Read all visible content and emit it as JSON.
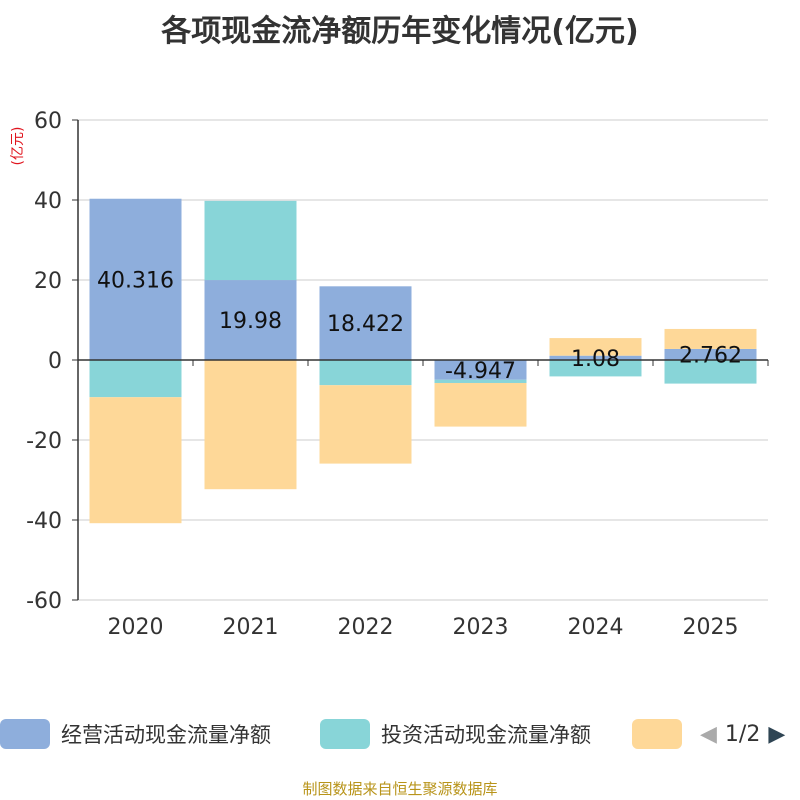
{
  "chart_data": {
    "type": "bar",
    "stacked": true,
    "title": "各项现金流净额历年变化情况(亿元)",
    "ylabel": "(亿元)",
    "xlabel": "",
    "ylim": [
      -60,
      60
    ],
    "yticks": [
      60,
      40,
      20,
      0,
      -20,
      -40,
      -60
    ],
    "categories": [
      "2020",
      "2021",
      "2022",
      "2023",
      "2024",
      "2025"
    ],
    "series": [
      {
        "name": "经营活动现金流量净额",
        "color": "#8eaedc",
        "values": [
          40.316,
          19.98,
          18.422,
          -4.947,
          1.08,
          2.762
        ],
        "labels": [
          "40.316",
          "19.98",
          "18.422",
          "-4.947",
          "1.08",
          "2.762"
        ]
      },
      {
        "name": "投资活动现金流量净额",
        "color": "#88d5d8",
        "values": [
          -9.3,
          19.8,
          -6.3,
          -0.8,
          -4.1,
          -5.9
        ]
      },
      {
        "name": "",
        "color": "#fed898",
        "values": [
          -31.5,
          -32.3,
          -19.6,
          -10.9,
          4.4,
          5.0
        ]
      }
    ],
    "legend_position": "bottom"
  },
  "legend": {
    "pager_text": "1/2"
  },
  "source": "制图数据来自恒生聚源数据库"
}
